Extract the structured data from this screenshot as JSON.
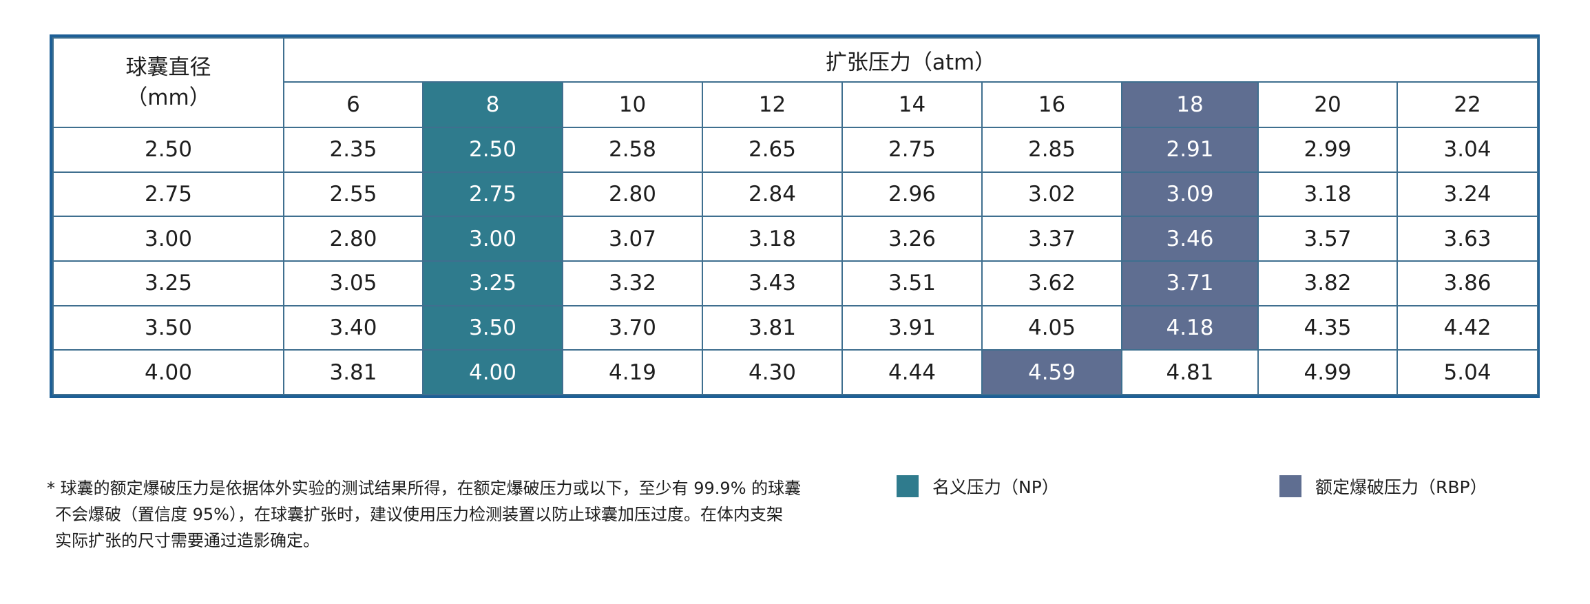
{
  "header": {
    "diameter_label_line1": "球囊直径",
    "diameter_label_line2": "（mm）",
    "pressure_group_label": "扩张压力（atm）"
  },
  "pressures": [
    "6",
    "8",
    "10",
    "12",
    "14",
    "16",
    "18",
    "20",
    "22"
  ],
  "rows": [
    {
      "diameter": "2.50",
      "values": [
        "2.35",
        "2.50",
        "2.58",
        "2.65",
        "2.75",
        "2.85",
        "2.91",
        "2.99",
        "3.04"
      ]
    },
    {
      "diameter": "2.75",
      "values": [
        "2.55",
        "2.75",
        "2.80",
        "2.84",
        "2.96",
        "3.02",
        "3.09",
        "3.18",
        "3.24"
      ]
    },
    {
      "diameter": "3.00",
      "values": [
        "2.80",
        "3.00",
        "3.07",
        "3.18",
        "3.26",
        "3.37",
        "3.46",
        "3.57",
        "3.63"
      ]
    },
    {
      "diameter": "3.25",
      "values": [
        "3.05",
        "3.25",
        "3.32",
        "3.43",
        "3.51",
        "3.62",
        "3.71",
        "3.82",
        "3.86"
      ]
    },
    {
      "diameter": "3.50",
      "values": [
        "3.40",
        "3.50",
        "3.70",
        "3.81",
        "3.91",
        "4.05",
        "4.18",
        "4.35",
        "4.42"
      ]
    },
    {
      "diameter": "4.00",
      "values": [
        "3.81",
        "4.00",
        "4.19",
        "4.30",
        "4.44",
        "4.59",
        "4.81",
        "4.99",
        "5.04"
      ]
    }
  ],
  "highlight": {
    "np_color": "#2f7b8d",
    "rbp_color": "#5f6e91"
  },
  "footnote": {
    "line1": "* 球囊的额定爆破压力是依据体外实验的测试结果所得，在额定爆破压力或以下，至少有 99.9% 的球囊",
    "line2": "不会爆破（置信度 95%），在球囊扩张时，建议使用压力检测装置以防止球囊加压过度。在体内支架",
    "line3": "实际扩张的尺寸需要通过造影确定。"
  },
  "legend": {
    "np_label": "名义压力（NP）",
    "rbp_label": "额定爆破压力（RBP）"
  }
}
